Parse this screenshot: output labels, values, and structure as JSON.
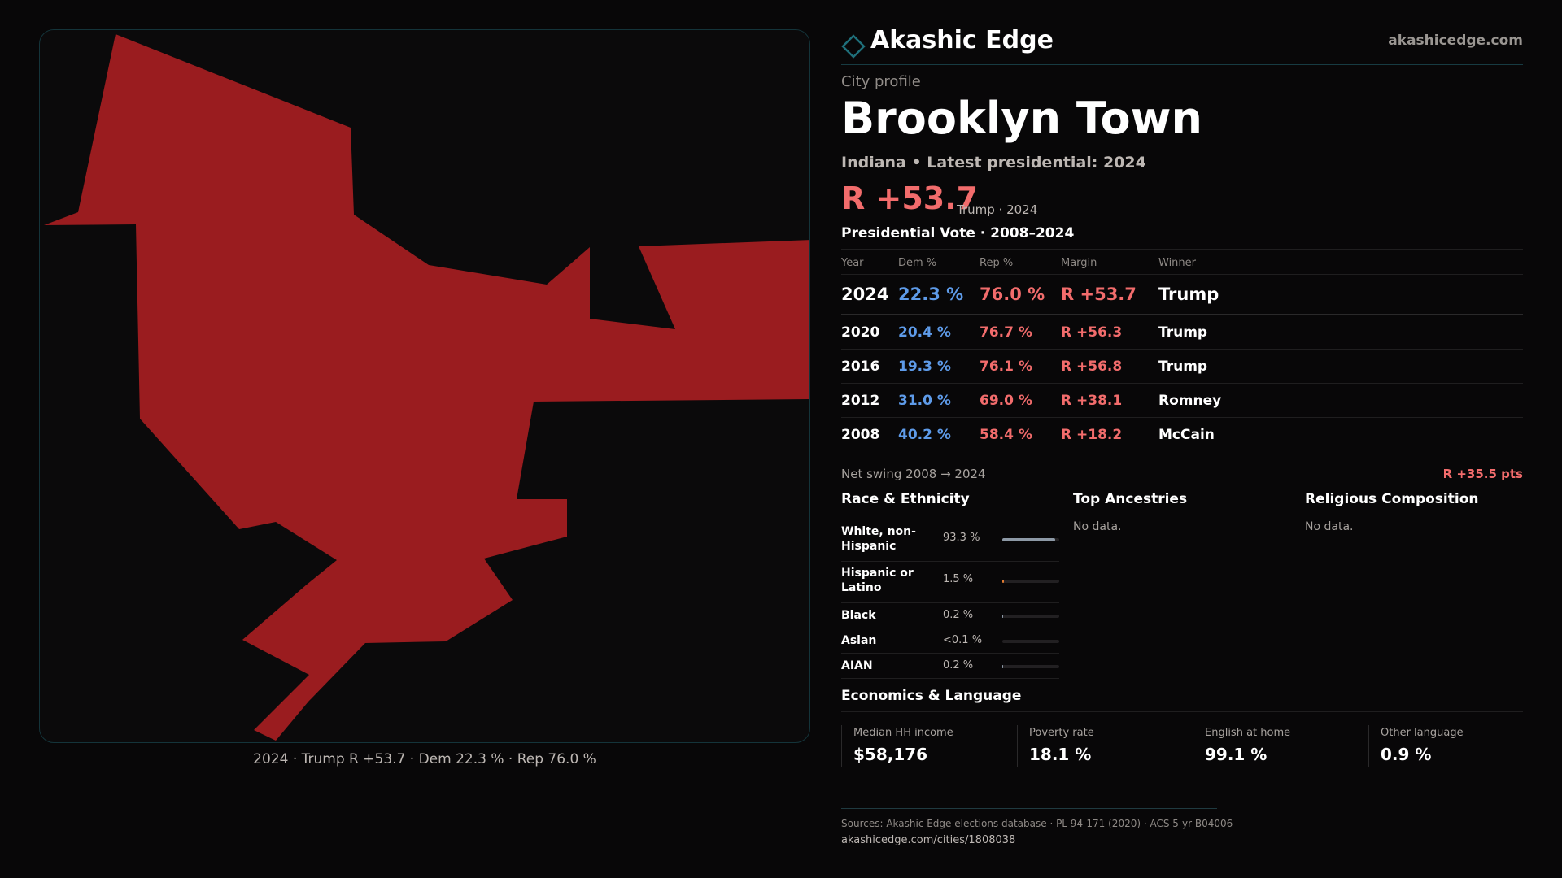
{
  "brand": {
    "name": "Akashic Edge",
    "url": "akashicedge.com"
  },
  "profile": {
    "eyebrow": "City profile",
    "city": "Brooklyn Town",
    "subtitle": "Indiana • Latest presidential: 2024",
    "headline_margin": "R +53.7",
    "headline_note": "Trump · 2024"
  },
  "map": {
    "caption": "2024 · Trump R +53.7 · Dem 22.3 % · Rep 76.0 %",
    "fill_color": "#9a1c1f"
  },
  "vote": {
    "title": "Presidential Vote · 2008–2024",
    "headers": {
      "year": "Year",
      "dem": "Dem %",
      "rep": "Rep %",
      "margin": "Margin",
      "winner": "Winner"
    },
    "rows": [
      {
        "year": "2024",
        "dem": "22.3 %",
        "rep": "76.0 %",
        "margin": "R +53.7",
        "winner": "Trump"
      },
      {
        "year": "2020",
        "dem": "20.4 %",
        "rep": "76.7 %",
        "margin": "R +56.3",
        "winner": "Trump"
      },
      {
        "year": "2016",
        "dem": "19.3 %",
        "rep": "76.1 %",
        "margin": "R +56.8",
        "winner": "Trump"
      },
      {
        "year": "2012",
        "dem": "31.0 %",
        "rep": "69.0 %",
        "margin": "R +38.1",
        "winner": "Romney"
      },
      {
        "year": "2008",
        "dem": "40.2 %",
        "rep": "58.4 %",
        "margin": "R +18.2",
        "winner": "McCain"
      }
    ],
    "swing_label": "Net swing 2008 → 2024",
    "swing_value": "R +35.5 pts"
  },
  "race": {
    "title": "Race & Ethnicity",
    "items": [
      {
        "name": "White, non-Hispanic",
        "pct": "93.3 %",
        "share": 0.933,
        "color": "#8d99a6"
      },
      {
        "name": "Hispanic or Latino",
        "pct": "1.5 %",
        "share": 0.015,
        "color": "#e07b32"
      },
      {
        "name": "Black",
        "pct": "0.2 %",
        "share": 0.002,
        "color": "#8d99a6"
      },
      {
        "name": "Asian",
        "pct": "<0.1 %",
        "share": 0.0,
        "color": "#8d99a6"
      },
      {
        "name": "AIAN",
        "pct": "0.2 %",
        "share": 0.002,
        "color": "#8d99a6"
      }
    ]
  },
  "ancestries": {
    "title": "Top Ancestries",
    "empty": "No data."
  },
  "religion": {
    "title": "Religious Composition",
    "empty": "No data."
  },
  "economics": {
    "title": "Economics & Language",
    "items": [
      {
        "label": "Median HH income",
        "value": "$58,176"
      },
      {
        "label": "Poverty rate",
        "value": "18.1 %"
      },
      {
        "label": "English at home",
        "value": "99.1 %"
      },
      {
        "label": "Other language",
        "value": "0.9 %"
      }
    ]
  },
  "sources": {
    "text": "Sources: Akashic Edge elections database · PL 94-171 (2020) · ACS 5-yr B04006",
    "url": "akashicedge.com/cities/1808038"
  },
  "colors": {
    "accent": "#1f6f7a",
    "republican": "#f26c6c",
    "democrat": "#5e9be9"
  }
}
